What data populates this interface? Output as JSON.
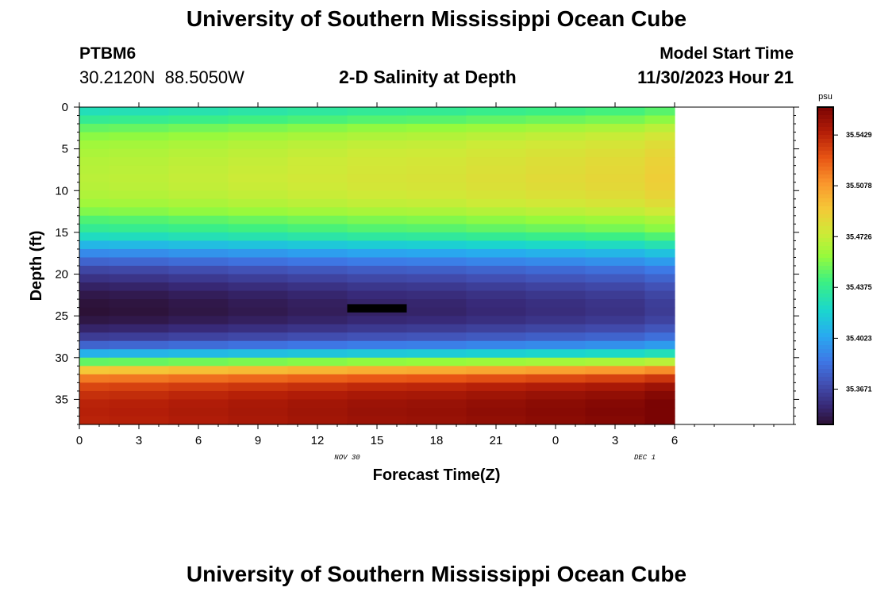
{
  "header": {
    "title": "University of Southern Mississippi Ocean Cube",
    "station_id": "PTBM6",
    "coords": "30.2120N  88.5050W",
    "subtitle": "2-D Salinity at Depth",
    "model_start_label": "Model Start Time",
    "model_start_value": "11/30/2023 Hour 21"
  },
  "footer": {
    "title": "University of Southern Mississippi Ocean Cube"
  },
  "colors": {
    "background": "#ffffff",
    "axis": "#000000",
    "missing_data": "#000000"
  },
  "chart_data": {
    "type": "heatmap",
    "title": "2-D Salinity at Depth",
    "xlabel": "Forecast Time(Z)",
    "ylabel": "Depth (ft)",
    "x_hours_range": [
      0,
      36
    ],
    "y_depth_range_ft": [
      0,
      38
    ],
    "y_inverted": true,
    "x_ticks": [
      {
        "hour": 0,
        "label": "0"
      },
      {
        "hour": 3,
        "label": "3"
      },
      {
        "hour": 6,
        "label": "6"
      },
      {
        "hour": 9,
        "label": "9"
      },
      {
        "hour": 12,
        "label": "12"
      },
      {
        "hour": 15,
        "label": "15"
      },
      {
        "hour": 18,
        "label": "18"
      },
      {
        "hour": 21,
        "label": "21"
      },
      {
        "hour": 24,
        "label": "0"
      },
      {
        "hour": 27,
        "label": "3"
      },
      {
        "hour": 30,
        "label": "6"
      }
    ],
    "y_ticks": [
      0,
      5,
      10,
      15,
      20,
      25,
      30,
      35
    ],
    "date_labels": [
      {
        "hour": 13.5,
        "label": "NOV 30"
      },
      {
        "hour": 28.5,
        "label": "DEC 1"
      }
    ],
    "colorbar": {
      "unit": "psu",
      "min": 35.3427,
      "max": 35.5622,
      "tick_labels": [
        "35.3671",
        "35.4023",
        "35.4375",
        "35.4726",
        "35.5078",
        "35.5429"
      ]
    },
    "time_hours": [
      0,
      1.5,
      4.5,
      7.5,
      10.5,
      13.5,
      16.5,
      19.5,
      22.5,
      25.5,
      28.5,
      30
    ],
    "depth_ft": [
      0,
      1,
      2,
      3,
      4,
      5,
      6,
      7,
      8,
      9,
      10,
      11,
      12,
      13,
      14,
      15,
      16,
      17,
      18,
      19,
      20,
      21,
      22,
      23,
      24,
      25,
      26,
      27,
      28,
      29,
      30,
      31,
      32,
      33,
      34,
      35,
      36,
      37,
      38
    ],
    "column_offsets_psu": [
      -0.003,
      -0.002,
      0.0,
      0.002,
      0.004,
      0.006,
      0.007,
      0.009,
      0.011,
      0.013,
      0.017
    ],
    "base_profile_psu": [
      35.43,
      35.44,
      35.452,
      35.46,
      35.465,
      35.468,
      35.47,
      35.471,
      35.472,
      35.471,
      35.469,
      35.465,
      35.458,
      35.448,
      35.44,
      35.428,
      35.412,
      35.396,
      35.382,
      35.37,
      35.362,
      35.355,
      35.35,
      35.347,
      35.346,
      35.349,
      35.356,
      35.366,
      35.382,
      35.41,
      35.452,
      35.495,
      35.52,
      35.535,
      35.542,
      35.546,
      35.547,
      35.546
    ],
    "missing_cell": {
      "time_hours": [
        13.5,
        16.5
      ],
      "depth_ft": [
        23.6,
        24.4
      ],
      "label": "missing"
    }
  }
}
